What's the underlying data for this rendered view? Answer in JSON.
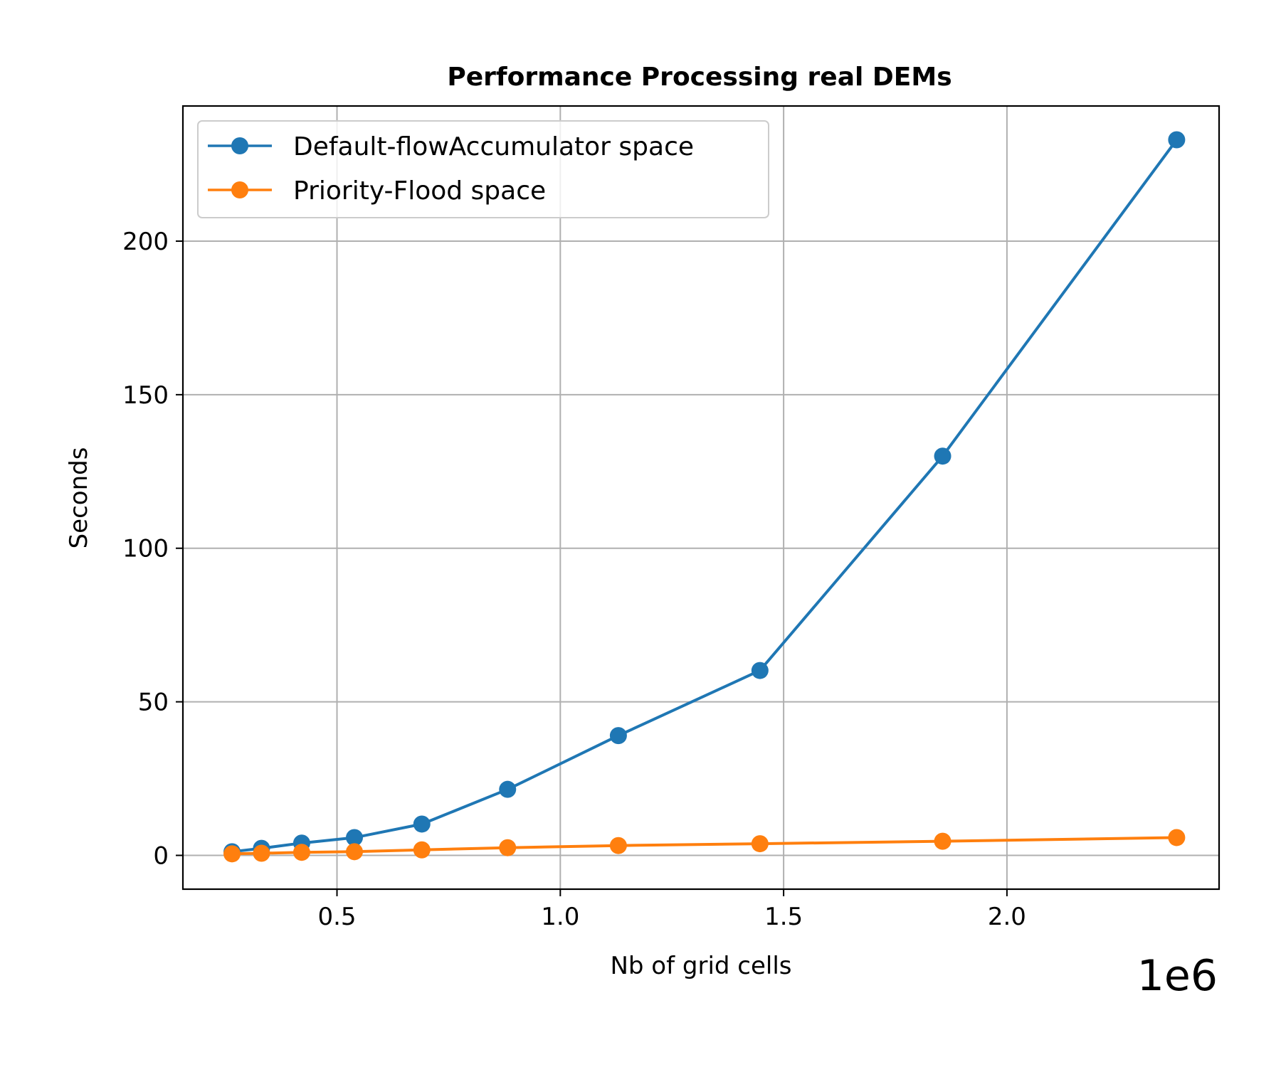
{
  "chart_data": {
    "type": "line",
    "title": "Performance Processing real DEMs",
    "xlabel": "Nb of grid cells",
    "ylabel": "Seconds",
    "x_offset_label": "1e6",
    "xlim": [
      0.155,
      2.475
    ],
    "ylim": [
      -11,
      244
    ],
    "x_ticks": [
      0.5,
      1.0,
      1.5,
      2.0
    ],
    "x_tick_labels": [
      "0.5",
      "1.0",
      "1.5",
      "2.0"
    ],
    "y_ticks": [
      0,
      50,
      100,
      150,
      200
    ],
    "y_tick_labels": [
      "0",
      "50",
      "100",
      "150",
      "200"
    ],
    "grid": true,
    "legend_position": "top-left",
    "x": [
      0.265,
      0.331,
      0.421,
      0.539,
      0.69,
      0.882,
      1.13,
      1.447,
      1.856,
      2.38
    ],
    "series": [
      {
        "name": "Default-flowAccumulator space",
        "color": "#1f77b4",
        "values": [
          1.2,
          2.3,
          4.0,
          5.8,
          10.2,
          21.5,
          39.0,
          60.2,
          130.0,
          233.0
        ]
      },
      {
        "name": "Priority-Flood space",
        "color": "#ff7f0e",
        "values": [
          0.5,
          0.7,
          1.0,
          1.2,
          1.8,
          2.5,
          3.2,
          3.8,
          4.6,
          5.8
        ]
      }
    ]
  }
}
